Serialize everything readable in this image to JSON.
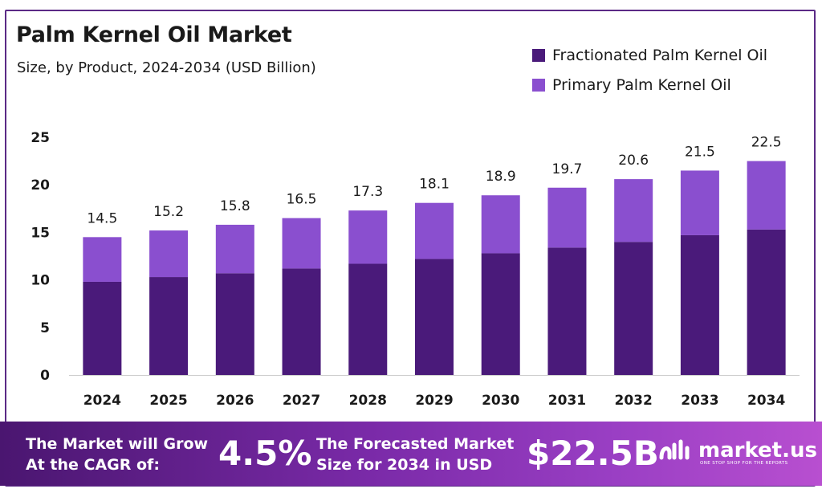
{
  "header": {
    "title": "Palm Kernel Oil Market",
    "subtitle": "Size, by Product, 2024-2034 (USD Billion)"
  },
  "legend": {
    "items": [
      {
        "label": "Fractionated Palm Kernel Oil",
        "color": "#4a1a7a"
      },
      {
        "label": "Primary Palm Kernel Oil",
        "color": "#8a4fcf"
      }
    ]
  },
  "chart_data": {
    "type": "bar",
    "stacked": true,
    "title": "Palm Kernel Oil Market",
    "subtitle": "Size, by Product, 2024-2034 (USD Billion)",
    "categories": [
      "2024",
      "2025",
      "2026",
      "2027",
      "2028",
      "2029",
      "2030",
      "2031",
      "2032",
      "2033",
      "2034"
    ],
    "series": [
      {
        "name": "Fractionated Palm Kernel Oil",
        "color": "#4a1a7a",
        "values": [
          9.8,
          10.3,
          10.7,
          11.2,
          11.7,
          12.2,
          12.8,
          13.4,
          14.0,
          14.7,
          15.3
        ]
      },
      {
        "name": "Primary Palm Kernel Oil",
        "color": "#8a4fcf",
        "values": [
          4.7,
          4.9,
          5.1,
          5.3,
          5.6,
          5.9,
          6.1,
          6.3,
          6.6,
          6.8,
          7.2
        ]
      }
    ],
    "totals": [
      "14.5",
      "15.2",
      "15.8",
      "16.5",
      "17.3",
      "18.1",
      "18.9",
      "19.7",
      "20.6",
      "21.5",
      "22.5"
    ],
    "yticks": [
      "0",
      "5",
      "10",
      "15",
      "20",
      "25"
    ],
    "ylim": [
      0,
      25
    ],
    "grid": false,
    "legend_position": "top-right"
  },
  "footer": {
    "cagr_label_line1": "The Market will Grow",
    "cagr_label_line2": "At the CAGR of:",
    "cagr_value": "4.5%",
    "forecast_label_line1": "The Forecasted Market",
    "forecast_label_line2": "Size for 2034 in USD",
    "forecast_value": "$22.5B",
    "brand": "market.us",
    "brand_tagline": "ONE STOP SHOP FOR THE REPORTS"
  }
}
